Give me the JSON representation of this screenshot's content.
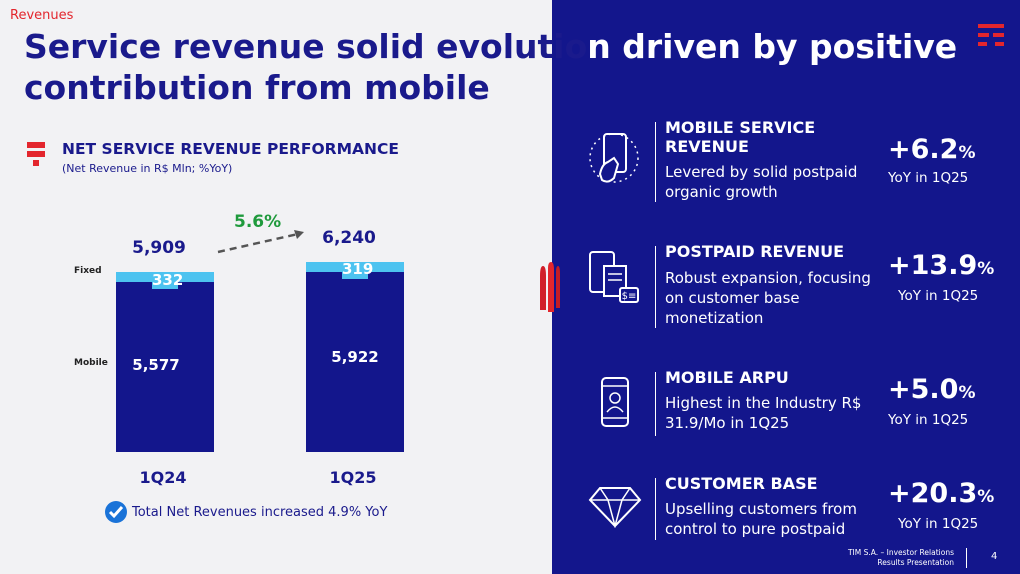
{
  "header": {
    "section": "Revenues",
    "title_part1": "Service revenue solid evolutio",
    "title_part2": "n driven by positive",
    "title_line2": "contribution from mobile"
  },
  "chart_data": {
    "type": "bar",
    "stacked": true,
    "title": "NET SERVICE REVENUE PERFORMANCE",
    "subtitle": "(Net Revenue in R$ Mln; %YoY)",
    "categories": [
      "1Q24",
      "1Q25"
    ],
    "series": [
      {
        "name": "Mobile",
        "values": [
          5577,
          5922
        ],
        "color": "#13168c"
      },
      {
        "name": "Fixed",
        "values": [
          332,
          319
        ],
        "color": "#4dc3f0"
      }
    ],
    "value_labels": {
      "Mobile": [
        "5,577",
        "5,922"
      ],
      "Fixed": [
        "332",
        "319"
      ]
    },
    "totals": [
      5909,
      6240
    ],
    "total_labels": [
      "5,909",
      "6,240"
    ],
    "growth_label": "5.6%",
    "legend": [
      "Fixed",
      "Mobile"
    ]
  },
  "footnote": "Total Net Revenues increased 4.9% YoY",
  "kpis": [
    {
      "icon": "phone-touch-icon",
      "title": "MOBILE SERVICE REVENUE",
      "desc": "Levered by solid postpaid organic growth",
      "value": "+6.2",
      "unit": "%",
      "period": "YoY in 1Q25"
    },
    {
      "icon": "postpaid-bill-icon",
      "title": "POSTPAID REVENUE",
      "desc": "Robust expansion, focusing on customer base monetization",
      "value": "+13.9",
      "unit": "%",
      "period": "YoY in 1Q25"
    },
    {
      "icon": "phone-user-icon",
      "title": "MOBILE ARPU",
      "desc": "Highest in the Industry R$ 31.9/Mo in 1Q25",
      "value": "+5.0",
      "unit": "%",
      "period": "YoY in 1Q25"
    },
    {
      "icon": "diamond-icon",
      "title": "CUSTOMER BASE",
      "desc": "Upselling customers from control to pure postpaid",
      "value": "+20.3",
      "unit": "%",
      "period": "YoY in 1Q25"
    }
  ],
  "footer": {
    "company": "TIM S.A. – Investor Relations",
    "doc": "Results Presentation",
    "page": "4"
  },
  "colors": {
    "brand_navy": "#13168c",
    "title_navy": "#1a1a8c",
    "accent_red": "#e3262d",
    "fixed_cyan": "#4dc3f0",
    "growth_green": "#1f9a3c"
  }
}
